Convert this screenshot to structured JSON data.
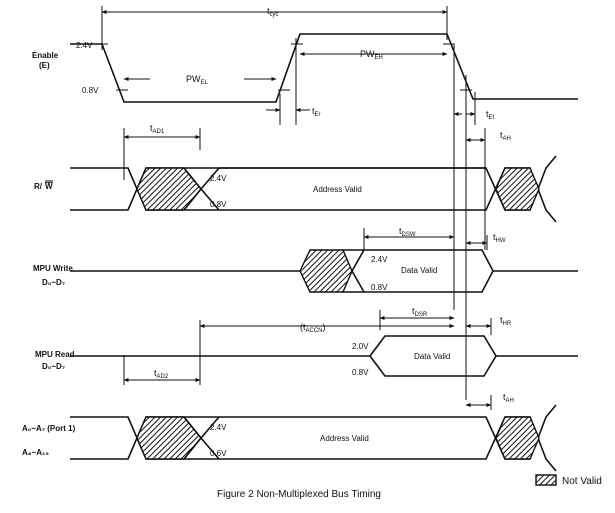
{
  "signals": {
    "enable": {
      "line1": "Enable",
      "line2": "(E)"
    },
    "rw": {
      "r": "R/",
      "w": "W"
    },
    "mpu_write": {
      "line1": "MPU Write",
      "d_line": "D₀~D₇"
    },
    "mpu_read": {
      "line1": "MPU Read",
      "d_line": "D₀~D₇"
    },
    "address": {
      "line1": "A₀~A₇ (Port 1)",
      "line2": "A₈~A₁₅"
    }
  },
  "levels": {
    "enable_high": "2.4V",
    "enable_low": "0.8V",
    "rw_high": "2.4V",
    "rw_low": "0.8V",
    "write_high": "2.4V",
    "write_low": "0.8V",
    "read_high": "2.0V",
    "read_low": "0.8V",
    "addr_high": "2.4V",
    "addr_low": "0.6V"
  },
  "bus_labels": {
    "rw": "Address Valid",
    "write": "Data Valid",
    "read": "Data Valid",
    "addr": "Address Valid"
  },
  "timing": {
    "tcyc": {
      "main": "t",
      "sub": "cyc"
    },
    "pwel": {
      "main": "PW",
      "sub": "EL"
    },
    "pweh": {
      "main": "PW",
      "sub": "EH"
    },
    "ter": {
      "main": "t",
      "sub": "Er"
    },
    "tef": {
      "main": "t",
      "sub": "Ef"
    },
    "tad1": {
      "main": "t",
      "sub": "AD1"
    },
    "tah1": {
      "main": "t",
      "sub": "AH"
    },
    "tdsw": {
      "main": "t",
      "sub": "DSW"
    },
    "thw": {
      "main": "t",
      "sub": "HW"
    },
    "taccn": {
      "main": "(t",
      "sub": "ACCN",
      "tail": ")"
    },
    "tdsr": {
      "main": "t",
      "sub": "DSR"
    },
    "thr": {
      "main": "t",
      "sub": "HR"
    },
    "tad2": {
      "main": "t",
      "sub": "AD2"
    },
    "tah2": {
      "main": "t",
      "sub": "AH"
    }
  },
  "legend": {
    "label": "Not Valid"
  },
  "caption": "Figure 2   Non-Multiplexed Bus Timing"
}
